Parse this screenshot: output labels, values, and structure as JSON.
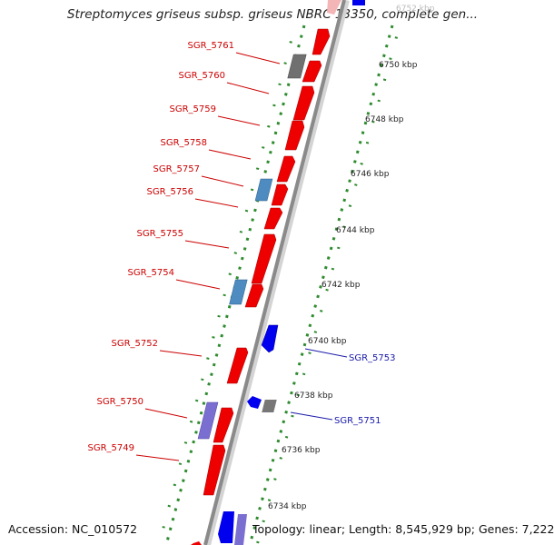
{
  "title": "Streptomyces griseus subsp. griseus NBRC 13350, complete gen...",
  "footer": {
    "accession": "Accession: NC_010572",
    "topology": "Topology: linear; Length: 8,545,929 bp; Genes: 7,222"
  },
  "colors": {
    "forward_gene": "#ff0000",
    "reverse_gene": "#0000ee",
    "other_forward": "#5a8fc4",
    "other_reverse": "#7a6fd0",
    "pseudo": "#777777",
    "label_forward": "#cc0000",
    "label_reverse": "#1a1aaa",
    "ticks": "#2e8b2e",
    "axis": "#8a8a8a"
  },
  "scale_labels": [
    "6752 kbp",
    "6750 kbp",
    "6748 kbp",
    "6746 kbp",
    "6744 kbp",
    "6742 kbp",
    "6740 kbp",
    "6738 kbp",
    "6736 kbp",
    "6734 kbp"
  ],
  "genes_forward": [
    "SGR_5761",
    "SGR_5760",
    "SGR_5759",
    "SGR_5758",
    "SGR_5757",
    "SGR_5756",
    "SGR_5755",
    "SGR_5754",
    "SGR_5752",
    "SGR_5750",
    "SGR_5749"
  ],
  "genes_reverse": [
    "SGR_5753",
    "SGR_5751"
  ]
}
